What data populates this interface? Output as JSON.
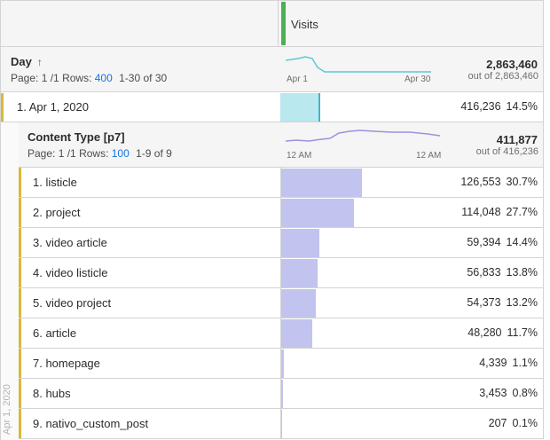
{
  "header": {
    "metric": "Visits"
  },
  "dimension": {
    "title": "Day",
    "page_label": "Page: 1 /1",
    "rows_label": "Rows:",
    "rows_value": "400",
    "range": "1-30 of 30",
    "total": "2,863,460",
    "out_of": "out of 2,863,460",
    "axis_start": "Apr 1",
    "axis_end": "Apr 30"
  },
  "day_row": {
    "label": "1. Apr 1, 2020",
    "value": "416,236",
    "pct": "14.5%",
    "fraction": 0.145
  },
  "breakdown": {
    "title": "Content Type [p7]",
    "page_label": "Page: 1 /1",
    "rows_label": "Rows:",
    "rows_value": "100",
    "range": "1-9 of 9",
    "total": "411,877",
    "out_of": "out of 416,236",
    "axis_start": "12 AM",
    "axis_end": "12 AM",
    "side_label": "Apr 1, 2020",
    "rows": [
      {
        "label": "1. listicle",
        "value": "126,553",
        "pct": "30.7%",
        "fraction": 0.307
      },
      {
        "label": "2. project",
        "value": "114,048",
        "pct": "27.7%",
        "fraction": 0.277
      },
      {
        "label": "3. video article",
        "value": "59,394",
        "pct": "14.4%",
        "fraction": 0.144
      },
      {
        "label": "4. video listicle",
        "value": "56,833",
        "pct": "13.8%",
        "fraction": 0.138
      },
      {
        "label": "5. video project",
        "value": "54,373",
        "pct": "13.2%",
        "fraction": 0.132
      },
      {
        "label": "6. article",
        "value": "48,280",
        "pct": "11.7%",
        "fraction": 0.117
      },
      {
        "label": "7. homepage",
        "value": "4,339",
        "pct": "1.1%",
        "fraction": 0.011
      },
      {
        "label": "8. hubs",
        "value": "3,453",
        "pct": "0.8%",
        "fraction": 0.008
      },
      {
        "label": "9. nativo_custom_post",
        "value": "207",
        "pct": "0.1%",
        "fraction": 0.001
      }
    ]
  },
  "colors": {
    "sparkline_day": "#5cc8d4",
    "sparkline_breakdown": "#9b92e0",
    "bar_day": "#b9e8ee",
    "bar_day_edge": "#44b4c6",
    "bar_breakdown": "#c3c3ef",
    "selection": "#d9b838",
    "link": "#1473e6"
  }
}
